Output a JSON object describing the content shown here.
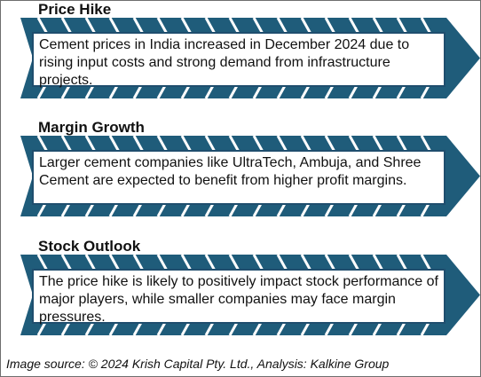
{
  "colors": {
    "arrow": "#1f5c7a",
    "box_border": "#1f4e6e",
    "text": "#111111"
  },
  "sections": [
    {
      "title": "Price Hike",
      "text": "Cement prices in India increased in December 2024 due to rising input costs and strong demand from infrastructure projects."
    },
    {
      "title": "Margin Growth",
      "text": "Larger cement companies like UltraTech, Ambuja, and Shree Cement are expected to benefit from higher profit margins."
    },
    {
      "title": "Stock Outlook",
      "text": "The price hike is likely to positively impact stock performance of major players, while smaller companies may face margin pressures."
    }
  ],
  "caption": "Image source: © 2024 Krish Capital Pty. Ltd., Analysis: Kalkine Group"
}
